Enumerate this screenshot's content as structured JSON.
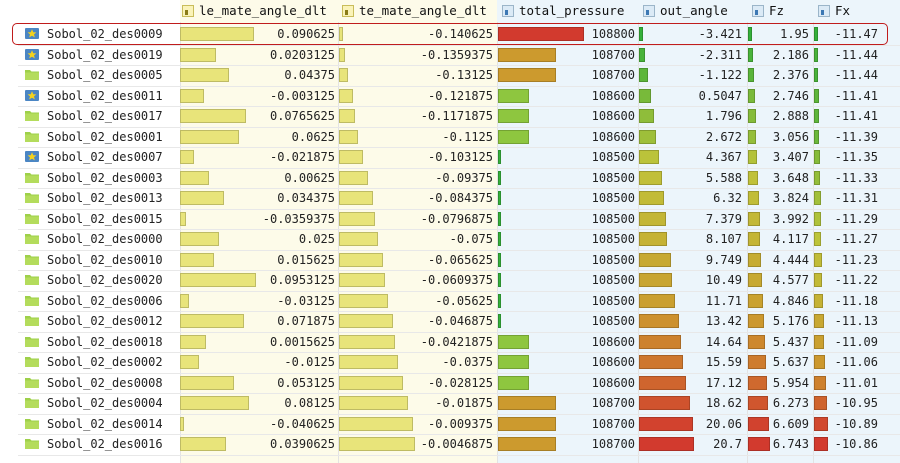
{
  "columns": [
    {
      "key": "le",
      "label": "le_mate_angle_dlt",
      "icon": "yellow-column-icon"
    },
    {
      "key": "te",
      "label": "te_mate_angle_dlt",
      "icon": "yellow-column-icon"
    },
    {
      "key": "tp",
      "label": "total_pressure",
      "icon": "blue-column-icon"
    },
    {
      "key": "oa",
      "label": "out_angle",
      "icon": "blue-column-icon"
    },
    {
      "key": "fz",
      "label": "Fz",
      "icon": "blue-column-icon"
    },
    {
      "key": "fx",
      "label": "Fx",
      "icon": "blue-column-icon"
    }
  ],
  "colors": {
    "yellow_bar": "#e8e47a",
    "green_bar": "#8ec63f",
    "green_bright": "#35b03a",
    "olive_bar": "#bfc43a",
    "orange_bar": "#cc9a2e",
    "red_bar": "#d23a2e",
    "selection": "#c01c1c"
  },
  "rows": [
    {
      "name": "Sobol_02_des0009",
      "starred": true,
      "le": "0.090625",
      "te": "-0.140625",
      "tp": "108800",
      "oa": "-3.421",
      "fz": "1.95",
      "fx": "-11.47"
    },
    {
      "name": "Sobol_02_des0019",
      "starred": true,
      "le": "0.0203125",
      "te": "-0.1359375",
      "tp": "108700",
      "oa": "-2.311",
      "fz": "2.186",
      "fx": "-11.44"
    },
    {
      "name": "Sobol_02_des0005",
      "starred": false,
      "le": "0.04375",
      "te": "-0.13125",
      "tp": "108700",
      "oa": "-1.122",
      "fz": "2.376",
      "fx": "-11.44"
    },
    {
      "name": "Sobol_02_des0011",
      "starred": true,
      "le": "-0.003125",
      "te": "-0.121875",
      "tp": "108600",
      "oa": "0.5047",
      "fz": "2.746",
      "fx": "-11.41"
    },
    {
      "name": "Sobol_02_des0017",
      "starred": false,
      "le": "0.0765625",
      "te": "-0.1171875",
      "tp": "108600",
      "oa": "1.796",
      "fz": "2.888",
      "fx": "-11.41"
    },
    {
      "name": "Sobol_02_des0001",
      "starred": false,
      "le": "0.0625",
      "te": "-0.1125",
      "tp": "108600",
      "oa": "2.672",
      "fz": "3.056",
      "fx": "-11.39"
    },
    {
      "name": "Sobol_02_des0007",
      "starred": true,
      "le": "-0.021875",
      "te": "-0.103125",
      "tp": "108500",
      "oa": "4.367",
      "fz": "3.407",
      "fx": "-11.35"
    },
    {
      "name": "Sobol_02_des0003",
      "starred": false,
      "le": "0.00625",
      "te": "-0.09375",
      "tp": "108500",
      "oa": "5.588",
      "fz": "3.648",
      "fx": "-11.33"
    },
    {
      "name": "Sobol_02_des0013",
      "starred": false,
      "le": "0.034375",
      "te": "-0.084375",
      "tp": "108500",
      "oa": "6.32",
      "fz": "3.824",
      "fx": "-11.31"
    },
    {
      "name": "Sobol_02_des0015",
      "starred": false,
      "le": "-0.0359375",
      "te": "-0.0796875",
      "tp": "108500",
      "oa": "7.379",
      "fz": "3.992",
      "fx": "-11.29"
    },
    {
      "name": "Sobol_02_des0000",
      "starred": false,
      "le": "0.025",
      "te": "-0.075",
      "tp": "108500",
      "oa": "8.107",
      "fz": "4.117",
      "fx": "-11.27"
    },
    {
      "name": "Sobol_02_des0010",
      "starred": false,
      "le": "0.015625",
      "te": "-0.065625",
      "tp": "108500",
      "oa": "9.749",
      "fz": "4.444",
      "fx": "-11.23"
    },
    {
      "name": "Sobol_02_des0020",
      "starred": false,
      "le": "0.0953125",
      "te": "-0.0609375",
      "tp": "108500",
      "oa": "10.49",
      "fz": "4.577",
      "fx": "-11.22"
    },
    {
      "name": "Sobol_02_des0006",
      "starred": false,
      "le": "-0.03125",
      "te": "-0.05625",
      "tp": "108500",
      "oa": "11.71",
      "fz": "4.846",
      "fx": "-11.18"
    },
    {
      "name": "Sobol_02_des0012",
      "starred": false,
      "le": "0.071875",
      "te": "-0.046875",
      "tp": "108500",
      "oa": "13.42",
      "fz": "5.176",
      "fx": "-11.13"
    },
    {
      "name": "Sobol_02_des0018",
      "starred": false,
      "le": "0.0015625",
      "te": "-0.0421875",
      "tp": "108600",
      "oa": "14.64",
      "fz": "5.437",
      "fx": "-11.09"
    },
    {
      "name": "Sobol_02_des0002",
      "starred": false,
      "le": "-0.0125",
      "te": "-0.0375",
      "tp": "108600",
      "oa": "15.59",
      "fz": "5.637",
      "fx": "-11.06"
    },
    {
      "name": "Sobol_02_des0008",
      "starred": false,
      "le": "0.053125",
      "te": "-0.028125",
      "tp": "108600",
      "oa": "17.12",
      "fz": "5.954",
      "fx": "-11.01"
    },
    {
      "name": "Sobol_02_des0004",
      "starred": false,
      "le": "0.08125",
      "te": "-0.01875",
      "tp": "108700",
      "oa": "18.62",
      "fz": "6.273",
      "fx": "-10.95"
    },
    {
      "name": "Sobol_02_des0014",
      "starred": false,
      "le": "-0.040625",
      "te": "-0.009375",
      "tp": "108700",
      "oa": "20.06",
      "fz": "6.609",
      "fx": "-10.89"
    },
    {
      "name": "Sobol_02_des0016",
      "starred": false,
      "le": "0.0390625",
      "te": "-0.0046875",
      "tp": "108700",
      "oa": "20.7",
      "fz": "6.743",
      "fx": "-10.86"
    }
  ]
}
